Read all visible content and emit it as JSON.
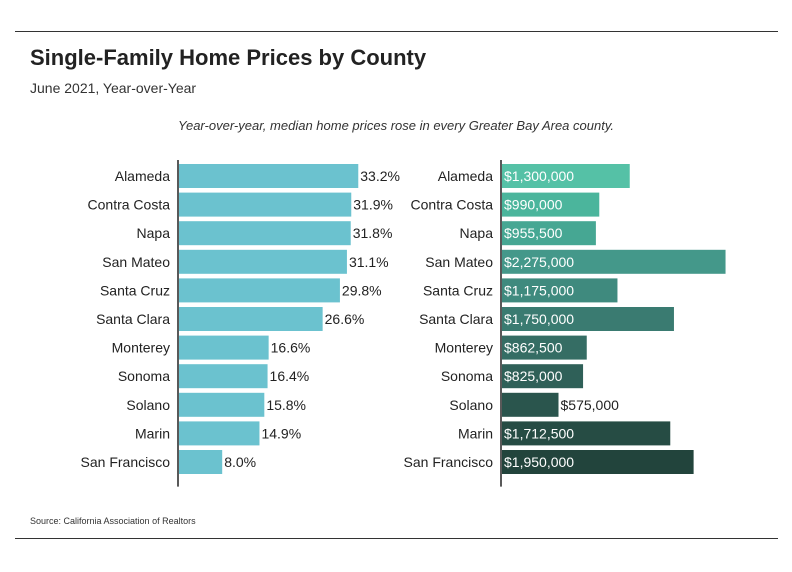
{
  "title": "Single-Family Home Prices by County",
  "subtitle": "June 2021, Year-over-Year",
  "caption": "Year-over-year, median home prices rose in every Greater Bay Area county.",
  "source": "Source:  California Association of Realtors",
  "chart_data": [
    {
      "type": "bar",
      "orientation": "horizontal",
      "categories": [
        "Alameda",
        "Contra Costa",
        "Napa",
        "San Mateo",
        "Santa Cruz",
        "Santa Clara",
        "Monterey",
        "Sonoma",
        "Solano",
        "Marin",
        "San Francisco"
      ],
      "values": [
        33.2,
        31.9,
        31.8,
        31.1,
        29.8,
        26.6,
        16.6,
        16.4,
        15.8,
        14.9,
        8.0
      ],
      "value_labels": [
        "33.2%",
        "31.9%",
        "31.8%",
        "31.1%",
        "29.8%",
        "26.6%",
        "16.6%",
        "16.4%",
        "15.8%",
        "14.9%",
        "8.0%"
      ],
      "unit": "%",
      "xlim": [
        0,
        35
      ],
      "color": "#6bc2cf"
    },
    {
      "type": "bar",
      "orientation": "horizontal",
      "categories": [
        "Alameda",
        "Contra Costa",
        "Napa",
        "San Mateo",
        "Santa Cruz",
        "Santa Clara",
        "Monterey",
        "Sonoma",
        "Solano",
        "Marin",
        "San Francisco"
      ],
      "values": [
        1300000,
        990000,
        955500,
        2275000,
        1175000,
        1750000,
        862500,
        825000,
        575000,
        1712500,
        1950000
      ],
      "value_labels": [
        "$1,300,000",
        "$990,000",
        "$955,500",
        "$2,275,000",
        "$1,175,000",
        "$1,750,000",
        "$862,500",
        "$825,000",
        "$575,000",
        "$1,712,500",
        "$1,950,000"
      ],
      "unit": "$",
      "xlim": [
        0,
        2300000
      ],
      "colors": [
        "#55c1a6",
        "#4bb59c",
        "#46a793",
        "#44988a",
        "#3f8a7e",
        "#3a7b71",
        "#356d64",
        "#2f6058",
        "#2a554d",
        "#264c44",
        "#22443c"
      ]
    }
  ]
}
